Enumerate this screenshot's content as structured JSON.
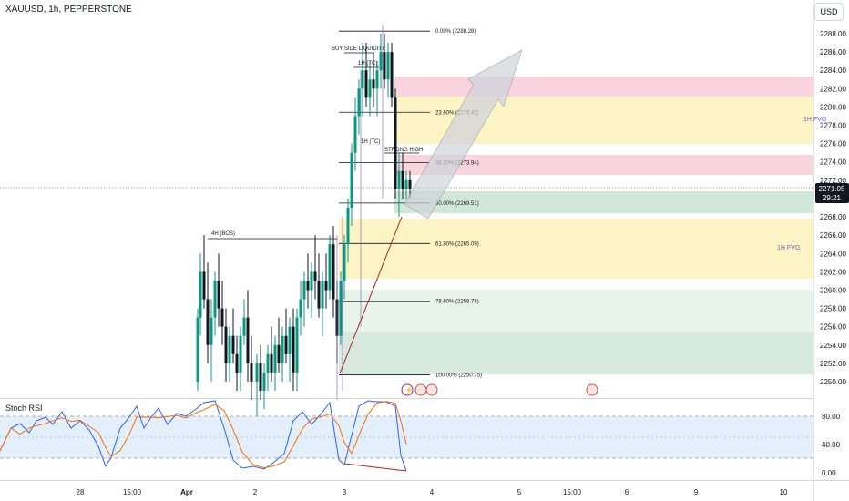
{
  "header": {
    "symbol": "XAUUSD, 1h, PEPPERSTONE",
    "currency_button": "USD"
  },
  "price_tag": {
    "price": "2271.05",
    "countdown": "29:21"
  },
  "indicator": {
    "title": "Stoch RSI"
  },
  "colors": {
    "bull": "#089981",
    "bear": "#131722",
    "fib": "#131722",
    "pink_zone": "#f7d1dc",
    "yellow_zone": "#fdf4c5",
    "green_zone": "#d9ede0",
    "rsi_k": "#2962ff",
    "rsi_d": "#ff6d00",
    "rsi_band": "#e3f0fb",
    "trend": "#b22222"
  },
  "price_axis": {
    "labels": [
      "2288.00",
      "2286.00",
      "2284.00",
      "2282.00",
      "2280.00",
      "2278.00",
      "2276.00",
      "2274.00",
      "2272.00",
      "2268.00",
      "2266.00",
      "2264.00",
      "2262.00",
      "2260.00",
      "2258.00",
      "2256.00",
      "2254.00",
      "2252.00",
      "2250.00"
    ]
  },
  "rsi_axis": {
    "labels": [
      "80.00",
      "40.00",
      "0.00"
    ]
  },
  "time_axis": {
    "labels": [
      "28",
      "15:00",
      "Apr",
      "2",
      "3",
      "4",
      "5",
      "15:00",
      "6",
      "9",
      "10"
    ]
  },
  "fib_levels": [
    {
      "label": "0.00% (2288.28)",
      "price": 2288.28
    },
    {
      "label": "23.60% (2279.42)",
      "price": 2279.42
    },
    {
      "label": "38.20% (2273.94)",
      "price": 2273.94
    },
    {
      "label": "50.00% (2269.51)",
      "price": 2269.51
    },
    {
      "label": "61.80% (2265.09)",
      "price": 2265.09
    },
    {
      "label": "78.60% (2258.78)",
      "price": 2258.78
    },
    {
      "label": "100.00% (2250.75)",
      "price": 2250.75
    }
  ],
  "annotations": {
    "buy_side": "BUY SIDE LIQUIDITY",
    "tc": "1H (TC)",
    "strong_high": "STRONG HIGH",
    "bos": "4H (BOS)",
    "fvg_top": "1H FVG",
    "fvg_mid": "1H FVG"
  }
}
